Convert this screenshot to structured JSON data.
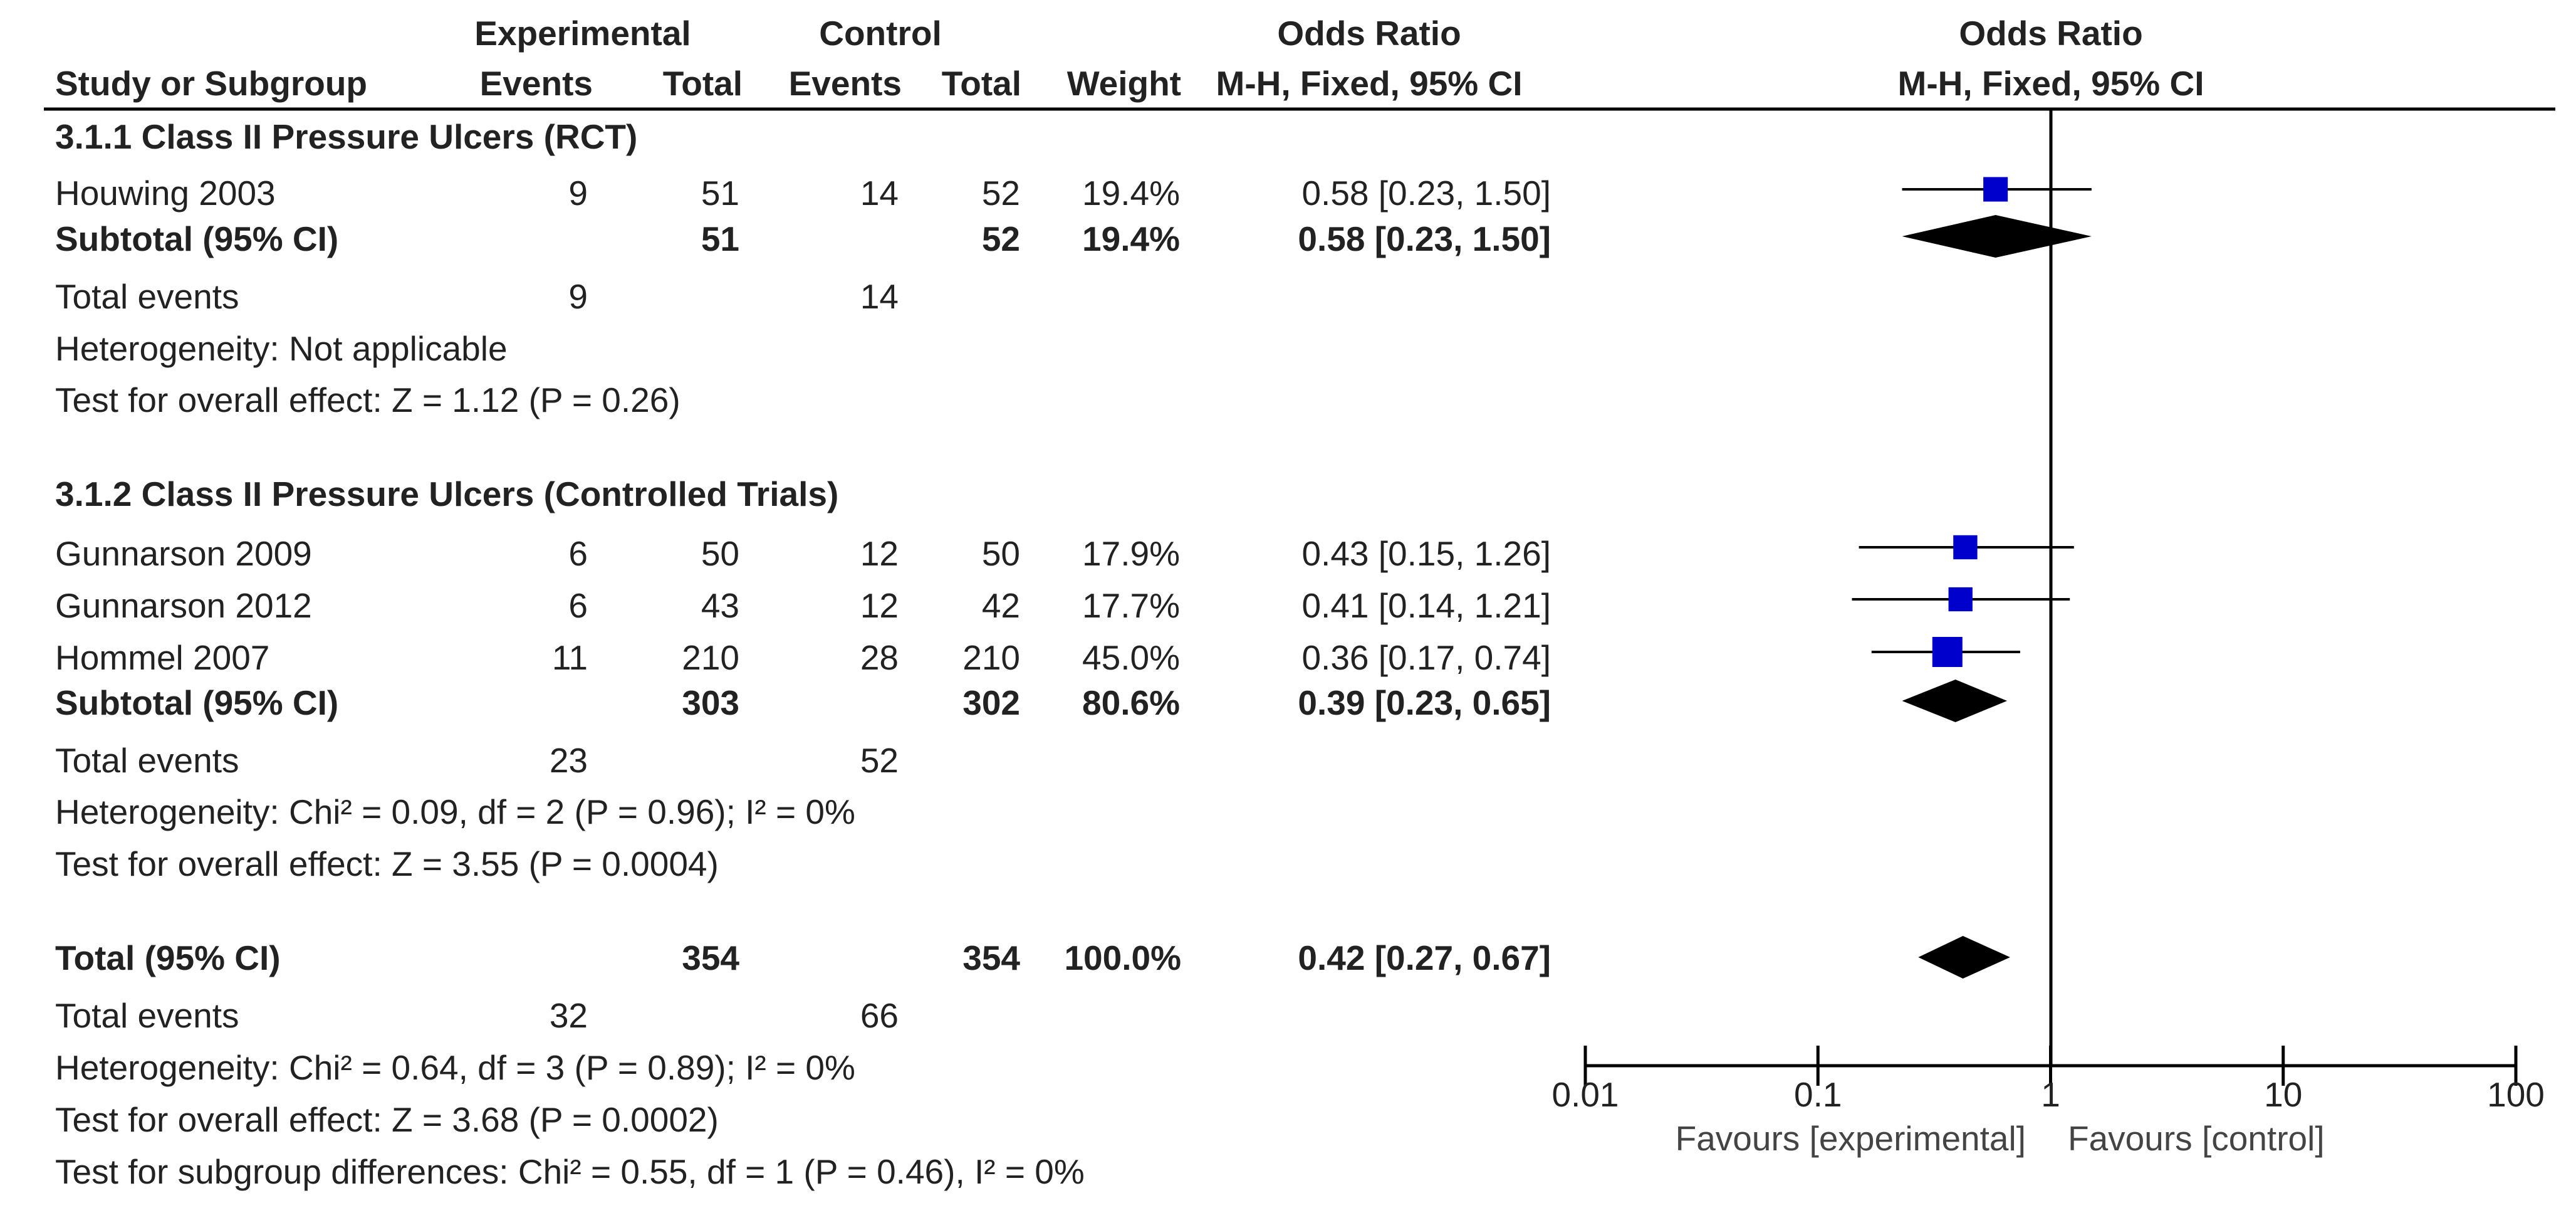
{
  "headers": {
    "group_experimental": "Experimental",
    "group_control": "Control",
    "odds_ratio": "Odds Ratio",
    "study": "Study or Subgroup",
    "events": "Events",
    "total": "Total",
    "weight": "Weight",
    "method_ci": "M-H, Fixed, 95% CI",
    "plot_title": "Odds Ratio",
    "plot_method": "M-H, Fixed, 95% CI"
  },
  "colors": {
    "marker": "#0000cc",
    "diamond": "#000000",
    "line": "#000000"
  },
  "subgroups": [
    {
      "title": "3.1.1 Class II Pressure Ulcers (RCT)",
      "studies": [
        {
          "name": "Houwing 2003",
          "exp_events": "9",
          "exp_total": "51",
          "ctl_events": "14",
          "ctl_total": "52",
          "weight": "19.4%",
          "ci_text": "0.58 [0.23, 1.50]"
        }
      ],
      "subtotal": {
        "label": "Subtotal (95% CI)",
        "exp_total": "51",
        "ctl_total": "52",
        "weight": "19.4%",
        "ci_text": "0.58 [0.23, 1.50]"
      },
      "total_events": {
        "label": "Total events",
        "exp": "9",
        "ctl": "14"
      },
      "heterogeneity": "Heterogeneity: Not applicable",
      "overall_effect": "Test for overall effect: Z = 1.12 (P = 0.26)"
    },
    {
      "title": "3.1.2 Class II Pressure Ulcers (Controlled Trials)",
      "studies": [
        {
          "name": "Gunnarson 2009",
          "exp_events": "6",
          "exp_total": "50",
          "ctl_events": "12",
          "ctl_total": "50",
          "weight": "17.9%",
          "ci_text": "0.43 [0.15, 1.26]"
        },
        {
          "name": "Gunnarson 2012",
          "exp_events": "6",
          "exp_total": "43",
          "ctl_events": "12",
          "ctl_total": "42",
          "weight": "17.7%",
          "ci_text": "0.41 [0.14, 1.21]"
        },
        {
          "name": "Hommel 2007",
          "exp_events": "11",
          "exp_total": "210",
          "ctl_events": "28",
          "ctl_total": "210",
          "weight": "45.0%",
          "ci_text": "0.36 [0.17, 0.74]"
        }
      ],
      "subtotal": {
        "label": "Subtotal (95% CI)",
        "exp_total": "303",
        "ctl_total": "302",
        "weight": "80.6%",
        "ci_text": "0.39 [0.23, 0.65]"
      },
      "total_events": {
        "label": "Total events",
        "exp": "23",
        "ctl": "52"
      },
      "heterogeneity": "Heterogeneity: Chi² = 0.09, df = 2 (P = 0.96); I² = 0%",
      "overall_effect": "Test for overall effect: Z = 3.55 (P = 0.0004)"
    }
  ],
  "overall": {
    "label": "Total (95% CI)",
    "exp_total": "354",
    "ctl_total": "354",
    "weight": "100.0%",
    "ci_text": "0.42 [0.27, 0.67]",
    "total_events": {
      "label": "Total events",
      "exp": "32",
      "ctl": "66"
    },
    "heterogeneity": "Heterogeneity: Chi² = 0.64, df = 3 (P = 0.89); I² = 0%",
    "overall_effect": "Test for overall effect: Z = 3.68 (P = 0.0002)",
    "subgroup_differences": "Test for subgroup differences: Chi² = 0.55, df = 1 (P = 0.46), I² = 0%"
  },
  "chart_data": {
    "type": "forest",
    "title": "Odds Ratio",
    "subtitle": "M-H, Fixed, 95% CI",
    "x_scale": "log",
    "xlim": [
      0.01,
      100
    ],
    "x_ticks": [
      0.01,
      0.1,
      1,
      10,
      100
    ],
    "x_tick_labels": [
      "0.01",
      "0.1",
      "1",
      "10",
      "100"
    ],
    "reference_line": 1,
    "favours_left": "Favours [experimental]",
    "favours_right": "Favours [control]",
    "studies": [
      {
        "name": "Houwing 2003",
        "or": 0.58,
        "lower": 0.23,
        "upper": 1.5,
        "weight": 19.4
      },
      {
        "name": "Gunnarson 2009",
        "or": 0.43,
        "lower": 0.15,
        "upper": 1.26,
        "weight": 17.9
      },
      {
        "name": "Gunnarson 2012",
        "or": 0.41,
        "lower": 0.14,
        "upper": 1.21,
        "weight": 17.7
      },
      {
        "name": "Hommel 2007",
        "or": 0.36,
        "lower": 0.17,
        "upper": 0.74,
        "weight": 45.0
      }
    ],
    "pooled": [
      {
        "name": "Subtotal 3.1.1",
        "or": 0.58,
        "lower": 0.23,
        "upper": 1.5,
        "weight": 19.4
      },
      {
        "name": "Subtotal 3.1.2",
        "or": 0.39,
        "lower": 0.23,
        "upper": 0.65,
        "weight": 80.6
      },
      {
        "name": "Total",
        "or": 0.42,
        "lower": 0.27,
        "upper": 0.67,
        "weight": 100.0
      }
    ]
  }
}
